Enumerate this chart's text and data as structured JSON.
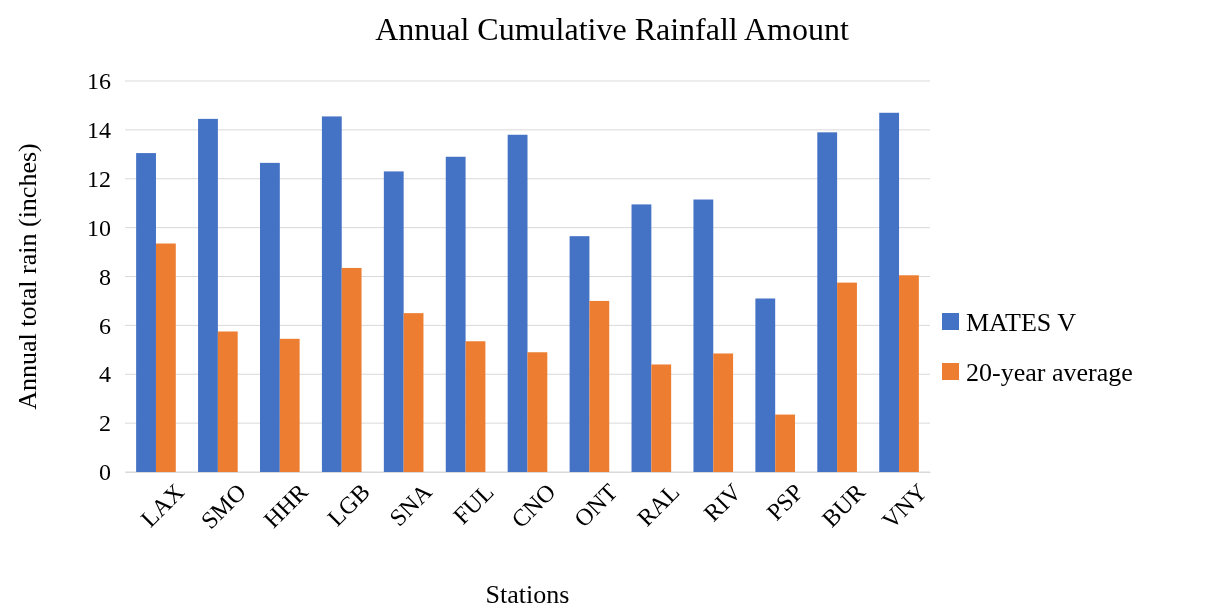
{
  "chart_data": {
    "type": "bar",
    "title": "Annual Cumulative Rainfall Amount",
    "xlabel": "Stations",
    "ylabel": "Annual total rain (inches)",
    "categories": [
      "LAX",
      "SMO",
      "HHR",
      "LGB",
      "SNA",
      "FUL",
      "CNO",
      "ONT",
      "RAL",
      "RIV",
      "PSP",
      "BUR",
      "VNY"
    ],
    "series": [
      {
        "name": "MATES V",
        "color": "#4472c4",
        "values": [
          13.05,
          14.45,
          12.65,
          14.55,
          12.3,
          12.9,
          13.8,
          9.65,
          10.95,
          11.15,
          7.1,
          13.9,
          14.7
        ]
      },
      {
        "name": "20-year average",
        "color": "#ed7d31",
        "values": [
          9.35,
          5.75,
          5.45,
          8.35,
          6.5,
          5.35,
          4.9,
          7.0,
          4.4,
          4.85,
          2.35,
          7.75,
          8.05
        ]
      }
    ],
    "ylim": [
      0,
      16
    ],
    "yticks": [
      0,
      2,
      4,
      6,
      8,
      10,
      12,
      14,
      16
    ],
    "grid": "y",
    "legend": "right"
  }
}
